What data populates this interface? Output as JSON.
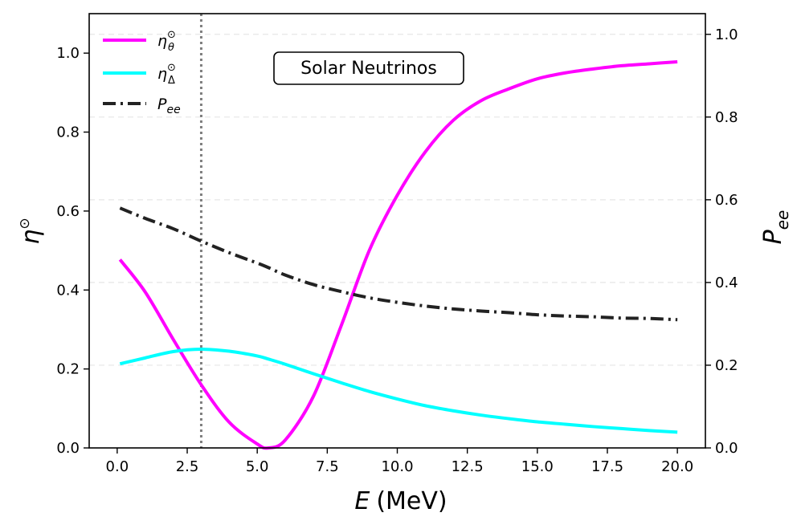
{
  "chart_data": {
    "type": "line",
    "title": "",
    "annotation": "Solar Neutrinos",
    "xlabel": "E (MeV)",
    "xlabel_var": "E",
    "xlabel_unit": "(MeV)",
    "ylabel_left": "η☉",
    "ylabel_left_base": "η",
    "ylabel_left_sup": "⊙",
    "ylabel_right": "Pee",
    "ylabel_right_base": "P",
    "ylabel_right_sub": "ee",
    "xlim": [
      -1,
      21
    ],
    "ylim_left": [
      0,
      1.1
    ],
    "ylim_right": [
      0,
      1.05
    ],
    "xticks": [
      0.0,
      2.5,
      5.0,
      7.5,
      10.0,
      12.5,
      15.0,
      17.5,
      20.0
    ],
    "xtick_labels": [
      "0.0",
      "2.5",
      "5.0",
      "7.5",
      "10.0",
      "12.5",
      "15.0",
      "17.5",
      "20.0"
    ],
    "yticks_left": [
      0.0,
      0.2,
      0.4,
      0.6,
      0.8,
      1.0
    ],
    "ytick_labels_left": [
      "0.0",
      "0.2",
      "0.4",
      "0.6",
      "0.8",
      "1.0"
    ],
    "yticks_right": [
      0.0,
      0.2,
      0.4,
      0.6,
      0.8,
      1.0
    ],
    "ytick_labels_right": [
      "0.0",
      "0.2",
      "0.4",
      "0.6",
      "0.8",
      "1.0"
    ],
    "vline_x": 3.0,
    "grid": "horizontal dashed (right axis ticks)",
    "legend_position": "top-left",
    "x": [
      0.1,
      1.0,
      2.0,
      3.0,
      4.0,
      5.0,
      5.4,
      6.0,
      7.0,
      8.0,
      9.0,
      10.0,
      11.0,
      12.0,
      13.0,
      14.0,
      15.0,
      16.0,
      17.0,
      18.0,
      19.0,
      20.0
    ],
    "series": [
      {
        "name": "η_θ☉",
        "legend_base": "η",
        "legend_sup": "⊙",
        "legend_sub": "θ",
        "axis": "left",
        "color": "#ff00ff",
        "style": "solid",
        "values": [
          0.477,
          0.395,
          0.275,
          0.16,
          0.065,
          0.01,
          0.0,
          0.02,
          0.13,
          0.31,
          0.5,
          0.64,
          0.75,
          0.83,
          0.88,
          0.91,
          0.935,
          0.95,
          0.96,
          0.968,
          0.973,
          0.978
        ]
      },
      {
        "name": "η_Δ☉",
        "legend_base": "η",
        "legend_sup": "⊙",
        "legend_sub": "Δ",
        "axis": "left",
        "color": "#00ffff",
        "style": "solid",
        "values": [
          0.213,
          0.228,
          0.244,
          0.25,
          0.245,
          0.233,
          0.225,
          0.212,
          0.188,
          0.165,
          0.143,
          0.124,
          0.107,
          0.094,
          0.083,
          0.074,
          0.066,
          0.06,
          0.054,
          0.049,
          0.044,
          0.04
        ]
      },
      {
        "name": "P_ee",
        "legend_base": "P",
        "legend_sub": "ee",
        "axis": "right",
        "color": "#222222",
        "style": "dashdot",
        "values": [
          0.58,
          0.555,
          0.53,
          0.5,
          0.472,
          0.447,
          0.436,
          0.418,
          0.395,
          0.378,
          0.363,
          0.352,
          0.343,
          0.336,
          0.331,
          0.327,
          0.322,
          0.319,
          0.317,
          0.314,
          0.313,
          0.31
        ]
      }
    ]
  }
}
